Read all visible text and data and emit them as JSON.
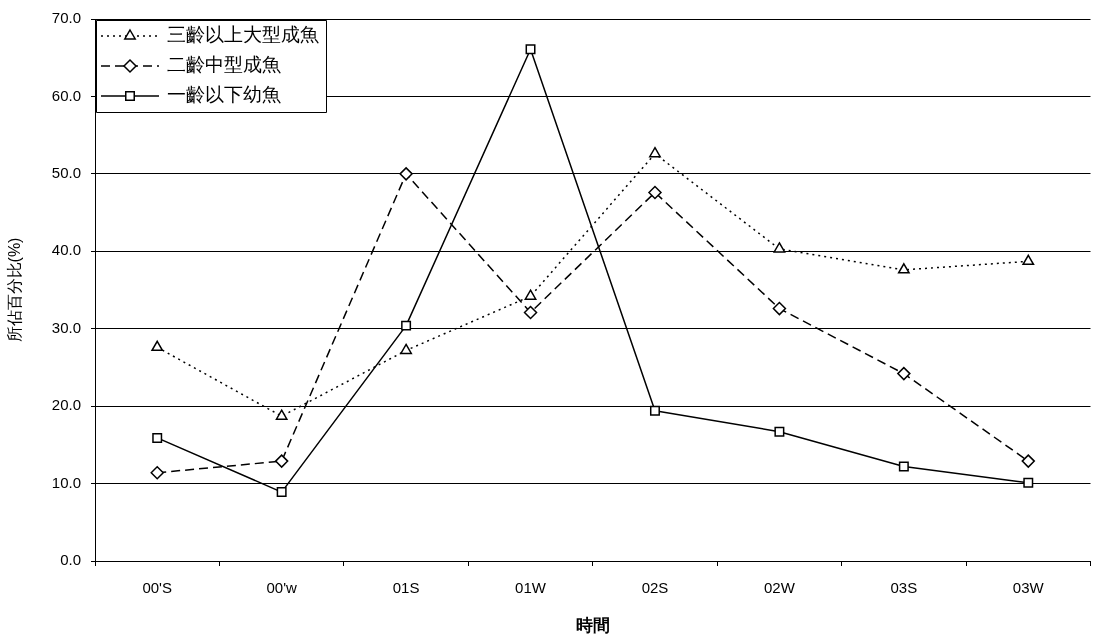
{
  "chart_data": {
    "type": "line",
    "categories": [
      "00'S",
      "00'w",
      "01S",
      "01W",
      "02S",
      "02W",
      "03S",
      "03W"
    ],
    "series": [
      {
        "name": "三齡以上大型成魚",
        "color": "#000000",
        "marker": "triangle",
        "line_style": "dotted",
        "values": [
          27.6,
          18.7,
          27.2,
          34.2,
          52.6,
          40.3,
          37.6,
          38.7
        ]
      },
      {
        "name": "二齡中型成魚",
        "color": "#000000",
        "marker": "diamond",
        "line_style": "dashed",
        "values": [
          11.4,
          12.9,
          50.0,
          32.1,
          47.6,
          32.6,
          24.2,
          12.9
        ]
      },
      {
        "name": "一齡以下幼魚",
        "color": "#000000",
        "marker": "square",
        "line_style": "solid",
        "values": [
          15.9,
          8.9,
          30.4,
          66.1,
          19.4,
          16.7,
          12.2,
          10.1
        ]
      }
    ],
    "xlabel": "時間",
    "ylabel": "所佔百分比(%)",
    "ylim": [
      0,
      70
    ],
    "yticks": [
      {
        "value": 0,
        "label": "0.0"
      },
      {
        "value": 10,
        "label": "10.0"
      },
      {
        "value": 20,
        "label": "20.0"
      },
      {
        "value": 30,
        "label": "30.0"
      },
      {
        "value": 40,
        "label": "40.0"
      },
      {
        "value": 50,
        "label": "50.0"
      },
      {
        "value": 60,
        "label": "60.0"
      },
      {
        "value": 70,
        "label": "70.0"
      }
    ],
    "grid": "y",
    "legend": "top left"
  }
}
